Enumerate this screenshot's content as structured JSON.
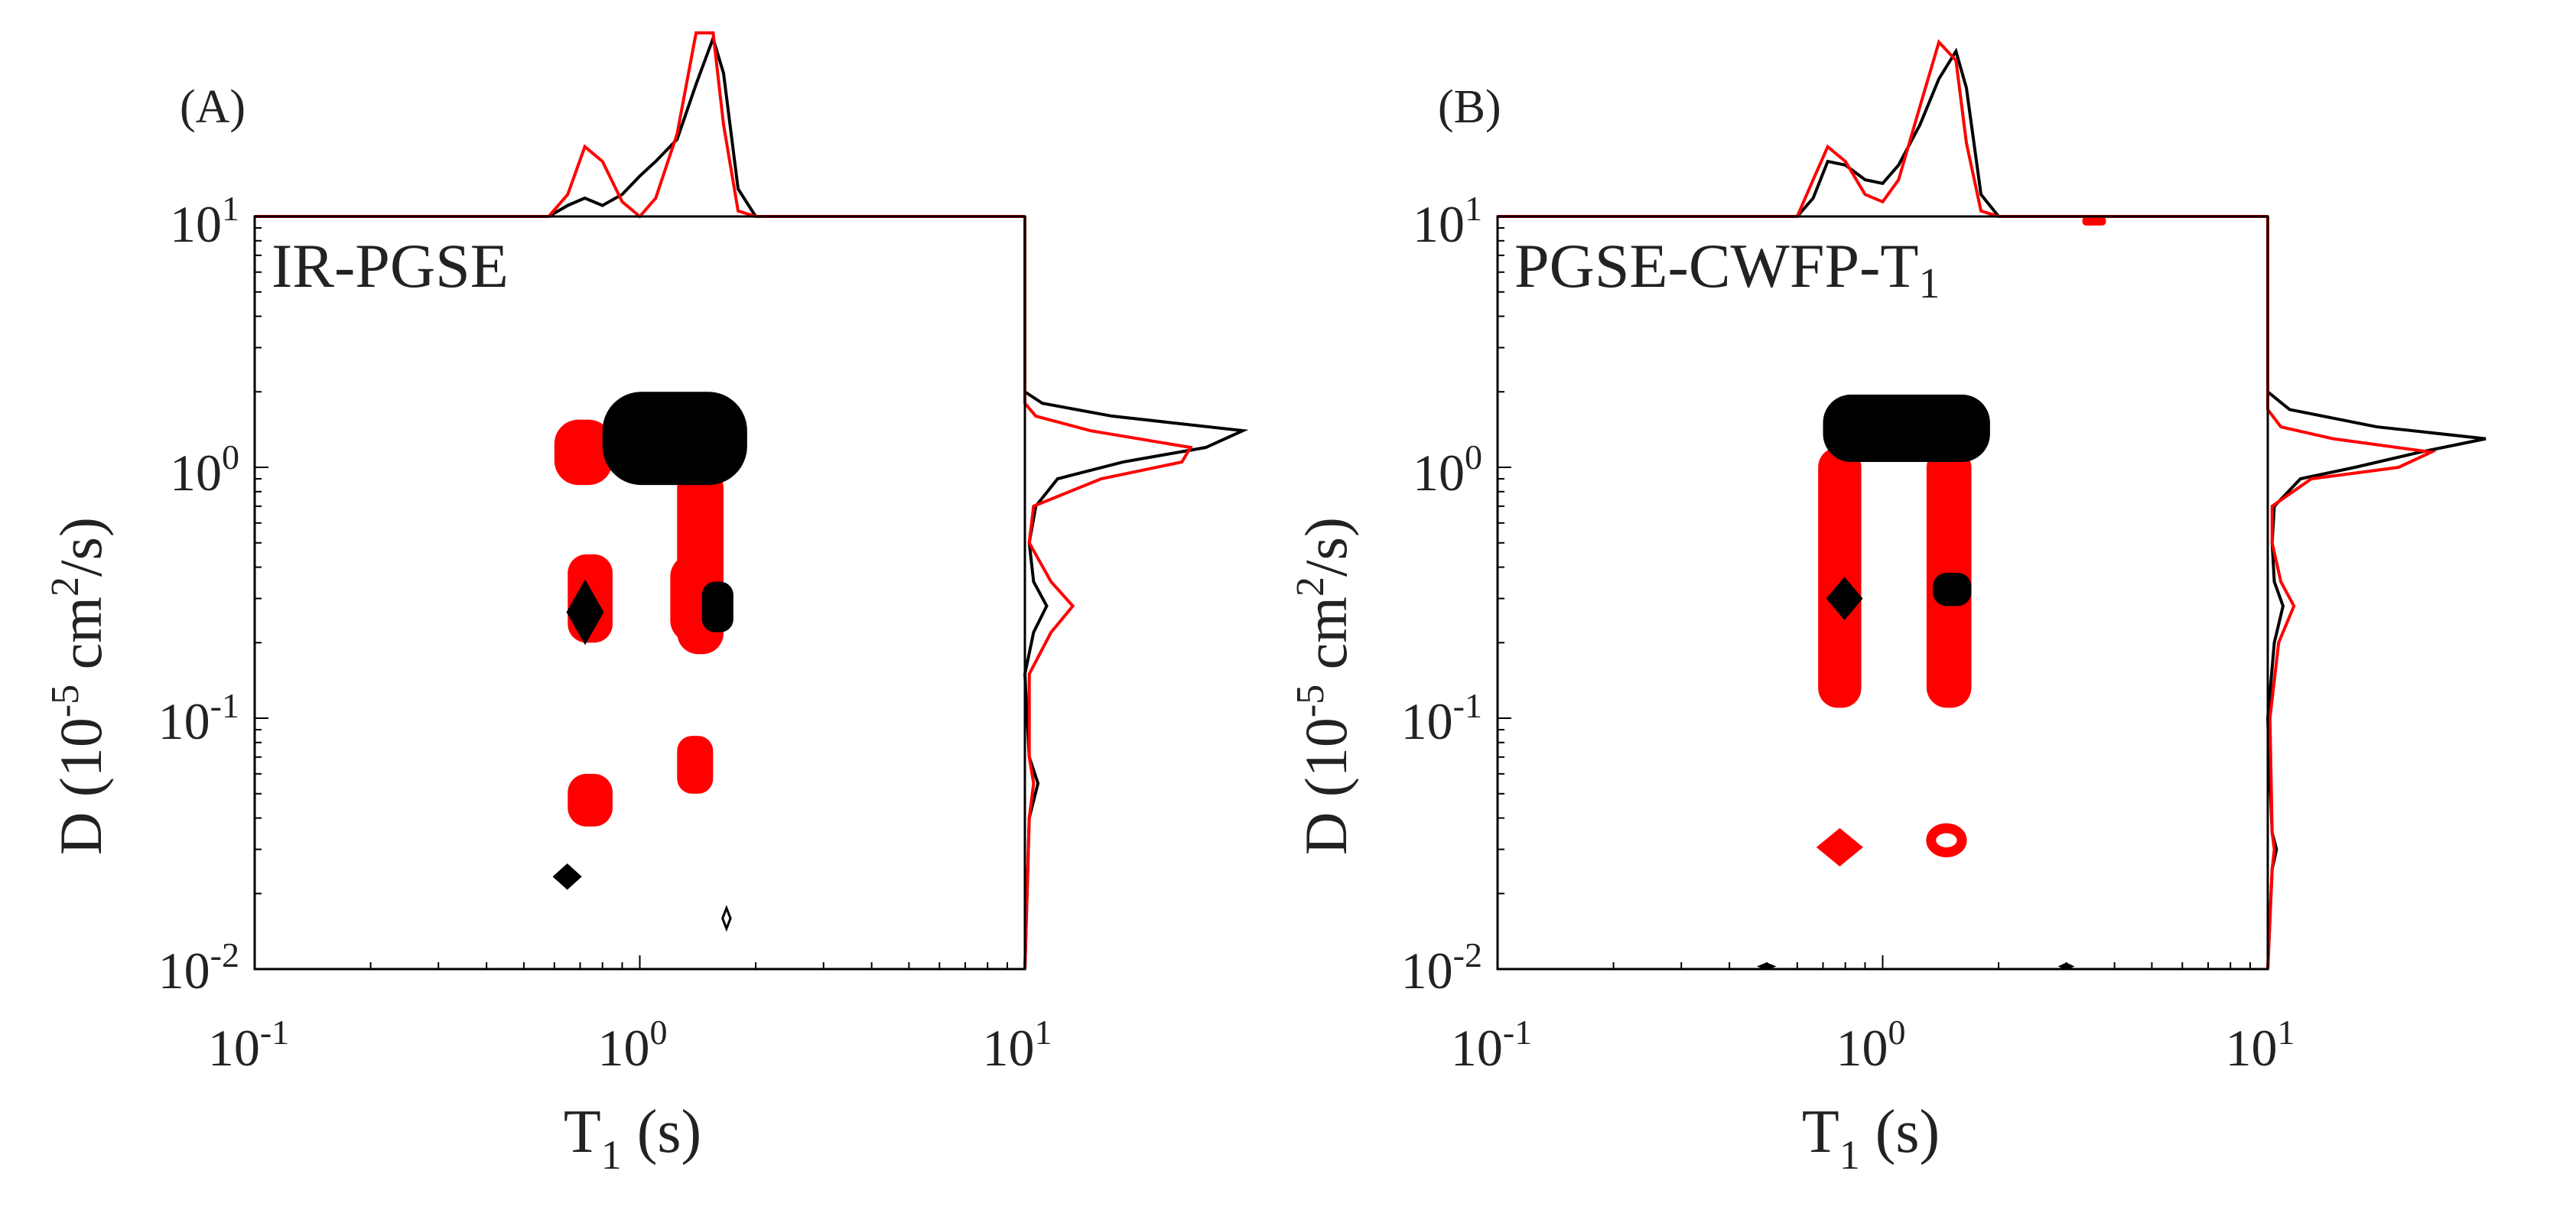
{
  "colors": {
    "black_series": "#000000",
    "red_series": "#ff0000",
    "axis": "#000000",
    "text": "#222222"
  },
  "chart_data": [
    {
      "type": "contour",
      "panel_label": "(A)",
      "method_label": "IR-PGSE",
      "method_label_subscript": "",
      "xlabel": "T",
      "xlabel_subscript": "1",
      "xlabel_unit": " (s)",
      "ylabel": "D (10",
      "ylabel_exponent": "-5",
      "ylabel_tail": " cm",
      "ylabel_exponent2": "2",
      "ylabel_end": "/s)",
      "xscale": "log",
      "yscale": "log",
      "xlim": [
        0.1,
        10
      ],
      "ylim": [
        0.01,
        10
      ],
      "xticks": [
        {
          "base": "10",
          "exp": "-1",
          "value": 0.1
        },
        {
          "base": "10",
          "exp": "0",
          "value": 1
        },
        {
          "base": "10",
          "exp": "1",
          "value": 10
        }
      ],
      "yticks": [
        {
          "base": "10",
          "exp": "-2",
          "value": 0.01
        },
        {
          "base": "10",
          "exp": "-1",
          "value": 0.1
        },
        {
          "base": "10",
          "exp": "0",
          "value": 1
        },
        {
          "base": "10",
          "exp": "1",
          "value": 10
        }
      ],
      "series": [
        {
          "name": "red",
          "color": "#ff0000",
          "peaks": [
            {
              "t1": [
                0.6,
                0.85
              ],
              "d": [
                0.85,
                1.55
              ],
              "shape": "blob"
            },
            {
              "t1": [
                1.25,
                1.65
              ],
              "d": [
                0.18,
                1.0
              ],
              "shape": "column"
            },
            {
              "t1": [
                0.65,
                0.85
              ],
              "d": [
                0.2,
                0.45
              ],
              "shape": "blob"
            },
            {
              "t1": [
                1.2,
                1.65
              ],
              "d": [
                0.2,
                0.45
              ],
              "shape": "blob"
            },
            {
              "t1": [
                1.25,
                1.55
              ],
              "d": [
                0.05,
                0.085
              ],
              "shape": "blob"
            },
            {
              "t1": [
                0.65,
                0.85
              ],
              "d": [
                0.037,
                0.06
              ],
              "shape": "blob"
            }
          ]
        },
        {
          "name": "black",
          "color": "#000000",
          "peaks": [
            {
              "t1": [
                0.8,
                1.9
              ],
              "d": [
                0.85,
                2.0
              ],
              "shape": "blob"
            },
            {
              "t1": [
                0.65,
                0.8
              ],
              "d": [
                0.2,
                0.35
              ],
              "shape": "diamond"
            },
            {
              "t1": [
                1.45,
                1.75
              ],
              "d": [
                0.22,
                0.35
              ],
              "shape": "blob"
            },
            {
              "t1": [
                0.6,
                0.7
              ],
              "d": [
                0.021,
                0.026
              ],
              "shape": "diamond"
            },
            {
              "t1": [
                1.64,
                1.72
              ],
              "d": [
                0.0145,
                0.0175
              ],
              "shape": "diamond-outline"
            }
          ]
        }
      ],
      "marginal_T1": {
        "x": [
          0.1,
          0.5,
          0.58,
          0.65,
          0.72,
          0.8,
          0.9,
          1.0,
          1.1,
          1.25,
          1.4,
          1.55,
          1.65,
          1.8,
          2.0,
          10
        ],
        "black": [
          0,
          0,
          0,
          0.06,
          0.1,
          0.06,
          0.12,
          0.22,
          0.3,
          0.42,
          0.72,
          0.97,
          0.78,
          0.15,
          0,
          0
        ],
        "red": [
          0,
          0,
          0,
          0.12,
          0.38,
          0.3,
          0.08,
          0,
          0.1,
          0.45,
          1.0,
          1.0,
          0.5,
          0.03,
          0,
          0
        ]
      },
      "marginal_D": {
        "y": [
          0.01,
          0.04,
          0.055,
          0.07,
          0.15,
          0.22,
          0.28,
          0.35,
          0.5,
          0.7,
          0.9,
          1.05,
          1.2,
          1.4,
          1.6,
          1.8,
          2.0,
          10
        ],
        "black": [
          0,
          0.02,
          0.06,
          0.02,
          0,
          0.04,
          0.1,
          0.04,
          0.02,
          0.05,
          0.15,
          0.45,
          0.83,
          1.0,
          0.4,
          0.08,
          0,
          0
        ],
        "red": [
          0,
          0.02,
          0.04,
          0.02,
          0.02,
          0.12,
          0.22,
          0.12,
          0.02,
          0.04,
          0.35,
          0.72,
          0.76,
          0.3,
          0.05,
          0,
          0,
          0
        ]
      }
    },
    {
      "type": "contour",
      "panel_label": "(B)",
      "method_label": "PGSE-CWFP-T",
      "method_label_subscript": "1",
      "xlabel": "T",
      "xlabel_subscript": "1",
      "xlabel_unit": " (s)",
      "ylabel": "D (10",
      "ylabel_exponent": "-5",
      "ylabel_tail": " cm",
      "ylabel_exponent2": "2",
      "ylabel_end": "/s)",
      "xscale": "log",
      "yscale": "log",
      "xlim": [
        0.1,
        10
      ],
      "ylim": [
        0.01,
        10
      ],
      "xticks": [
        {
          "base": "10",
          "exp": "-1",
          "value": 0.1
        },
        {
          "base": "10",
          "exp": "0",
          "value": 1
        },
        {
          "base": "10",
          "exp": "1",
          "value": 10
        }
      ],
      "yticks": [
        {
          "base": "10",
          "exp": "-2",
          "value": 0.01
        },
        {
          "base": "10",
          "exp": "-1",
          "value": 0.1
        },
        {
          "base": "10",
          "exp": "0",
          "value": 1
        },
        {
          "base": "10",
          "exp": "1",
          "value": 10
        }
      ],
      "series": [
        {
          "name": "red",
          "color": "#ff0000",
          "peaks": [
            {
              "t1": [
                0.68,
                0.88
              ],
              "d": [
                0.11,
                1.2
              ],
              "shape": "column"
            },
            {
              "t1": [
                1.3,
                1.7
              ],
              "d": [
                0.11,
                1.2
              ],
              "shape": "column"
            },
            {
              "t1": [
                0.68,
                0.88
              ],
              "d": [
                0.026,
                0.036
              ],
              "shape": "diamond"
            },
            {
              "t1": [
                1.3,
                1.65
              ],
              "d": [
                0.028,
                0.038
              ],
              "shape": "ring"
            },
            {
              "t1": [
                3.3,
                3.8
              ],
              "d": [
                9.2,
                10
              ],
              "shape": "blob"
            }
          ]
        },
        {
          "name": "black",
          "color": "#000000",
          "peaks": [
            {
              "t1": [
                0.7,
                1.9
              ],
              "d": [
                1.05,
                1.95
              ],
              "shape": "blob"
            },
            {
              "t1": [
                0.72,
                0.88
              ],
              "d": [
                0.25,
                0.36
              ],
              "shape": "diamond"
            },
            {
              "t1": [
                1.35,
                1.7
              ],
              "d": [
                0.28,
                0.38
              ],
              "shape": "blob"
            },
            {
              "t1": [
                0.48,
                0.52
              ],
              "d": [
                0.01,
                0.0105
              ],
              "shape": "diamond"
            },
            {
              "t1": [
                2.9,
                3.1
              ],
              "d": [
                0.01,
                0.0105
              ],
              "shape": "diamond"
            }
          ]
        }
      ],
      "marginal_T1": {
        "x": [
          0.1,
          0.5,
          0.6,
          0.66,
          0.72,
          0.8,
          0.9,
          1.0,
          1.1,
          1.25,
          1.4,
          1.55,
          1.65,
          1.8,
          2.0,
          10
        ],
        "black": [
          0,
          0,
          0,
          0.1,
          0.3,
          0.28,
          0.2,
          0.18,
          0.28,
          0.5,
          0.75,
          0.9,
          0.7,
          0.12,
          0,
          0
        ],
        "red": [
          0,
          0,
          0,
          0.2,
          0.38,
          0.3,
          0.12,
          0.08,
          0.2,
          0.6,
          0.95,
          0.85,
          0.4,
          0.03,
          0,
          0
        ]
      },
      "marginal_D": {
        "y": [
          0.01,
          0.025,
          0.03,
          0.035,
          0.1,
          0.2,
          0.28,
          0.35,
          0.5,
          0.7,
          0.9,
          1.0,
          1.15,
          1.3,
          1.45,
          1.7,
          2.0,
          10
        ],
        "black": [
          0,
          0.02,
          0.04,
          0.02,
          0,
          0.03,
          0.07,
          0.03,
          0.02,
          0.03,
          0.15,
          0.4,
          0.7,
          1.0,
          0.5,
          0.1,
          0,
          0
        ],
        "red": [
          0,
          0.02,
          0.03,
          0.02,
          0.01,
          0.05,
          0.12,
          0.06,
          0.02,
          0.02,
          0.2,
          0.6,
          0.75,
          0.3,
          0.06,
          0,
          0,
          0
        ]
      }
    }
  ]
}
